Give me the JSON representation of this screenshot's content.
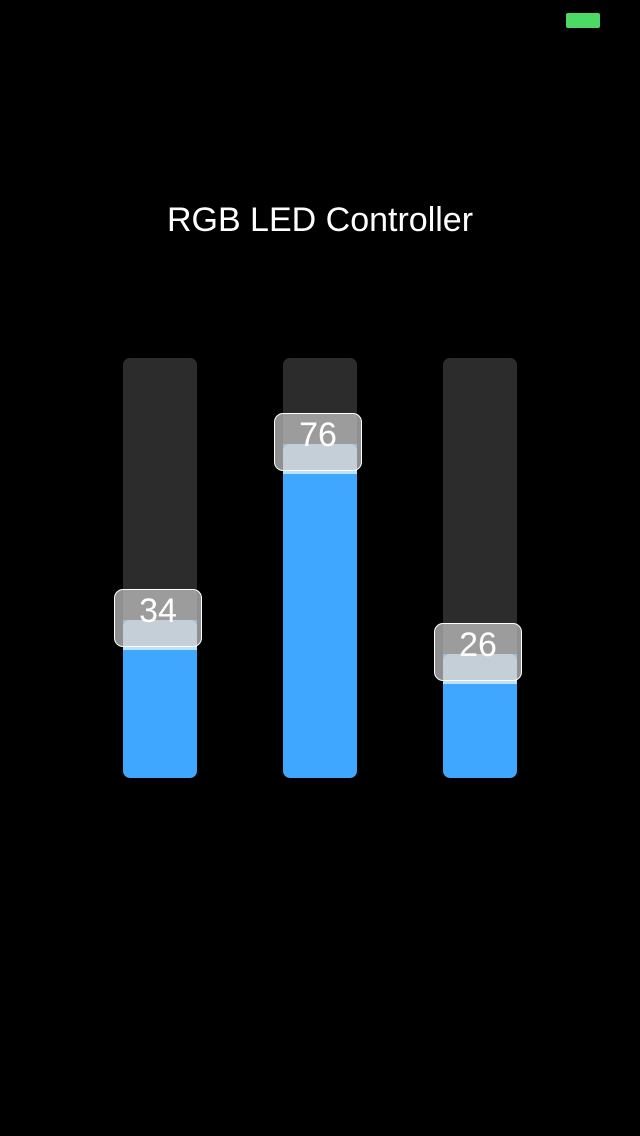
{
  "status_bar": {
    "battery_icon": "battery-icon",
    "battery_color": "#4cd964"
  },
  "title": "RGB LED Controller",
  "colors": {
    "track": "#2c2c2c",
    "fill": "#3fa7ff",
    "fill_highlight": "#bfe0ff"
  },
  "sliders": [
    {
      "value": "34",
      "level": 0.34
    },
    {
      "value": "76",
      "level": 0.76
    },
    {
      "value": "26",
      "level": 0.26
    }
  ]
}
